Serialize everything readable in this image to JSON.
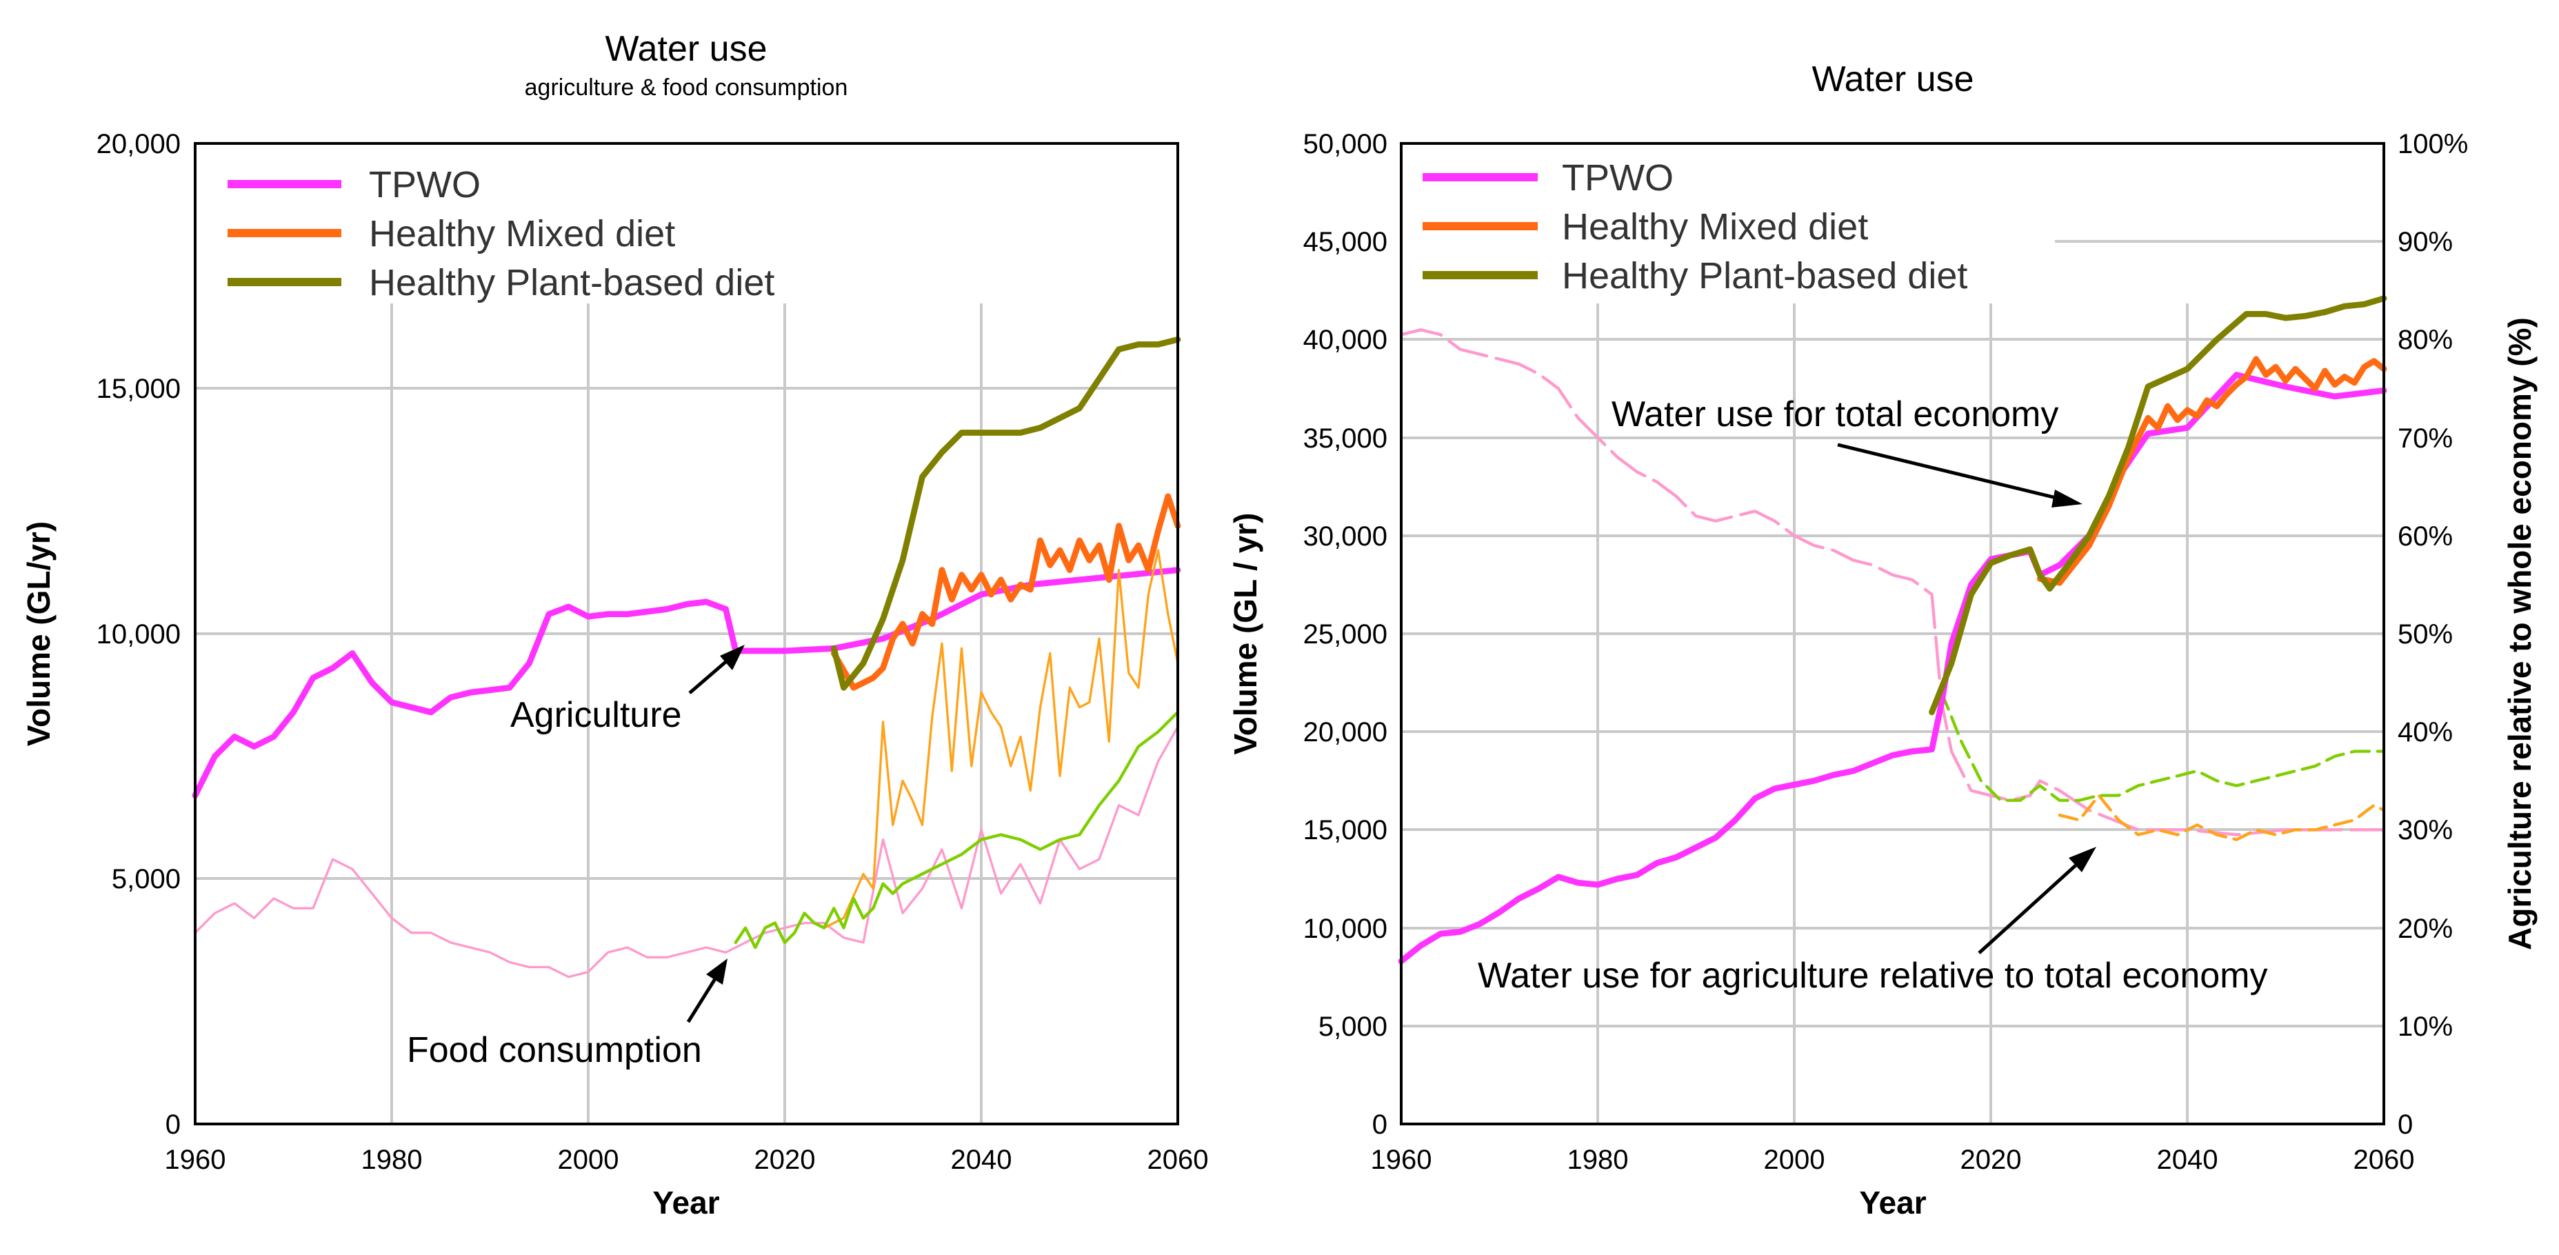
{
  "colors": {
    "tpwo": "#ff33ff",
    "tpwo_light": "#ff99cc",
    "mixed": "#ff6a13",
    "mixed_light": "#ffa31a",
    "plant": "#808000",
    "plant_light": "#7fce00"
  },
  "chart_data": [
    {
      "type": "line",
      "title": "Water use",
      "subtitle": "agriculture & food consumption",
      "xlabel": "Year",
      "ylabel": "Volume (GL/yr)",
      "xlim": [
        1960,
        2060
      ],
      "ylim": [
        0,
        20000
      ],
      "xticks": [
        1960,
        1980,
        2000,
        2020,
        2040,
        2060
      ],
      "xtick_labels": [
        "1960",
        "1980",
        "2000",
        "2020",
        "2040",
        "2060"
      ],
      "yticks": [
        0,
        5000,
        10000,
        15000,
        20000
      ],
      "ytick_labels": [
        "0",
        "5,000",
        "10,000",
        "15,000",
        "20,000"
      ],
      "legend": [
        "TPWO",
        "Healthy Mixed diet",
        "Healthy Plant-based diet"
      ],
      "annotations": [
        {
          "text": "Agriculture",
          "target": [
            2015,
            9650
          ]
        },
        {
          "text": "Food consumption",
          "target": [
            2015,
            3400
          ]
        }
      ],
      "series": [
        {
          "name": "TPWO agriculture",
          "color": "tpwo",
          "width": 8,
          "x": [
            1960,
            1962,
            1964,
            1966,
            1968,
            1970,
            1972,
            1974,
            1976,
            1978,
            1980,
            1982,
            1984,
            1986,
            1988,
            1990,
            1992,
            1994,
            1996,
            1998,
            2000,
            2002,
            2004,
            2006,
            2008,
            2010,
            2012,
            2014,
            2015,
            2020,
            2025,
            2030,
            2035,
            2040,
            2045,
            2050,
            2055,
            2060
          ],
          "y": [
            6700,
            7500,
            7900,
            7700,
            7900,
            8400,
            9100,
            9300,
            9600,
            9000,
            8600,
            8500,
            8400,
            8700,
            8800,
            8850,
            8900,
            9400,
            10400,
            10550,
            10350,
            10400,
            10400,
            10450,
            10500,
            10600,
            10650,
            10500,
            9650,
            9650,
            9700,
            9900,
            10300,
            10800,
            11000,
            11100,
            11200,
            11300
          ]
        },
        {
          "name": "Healthy Mixed diet agriculture",
          "color": "mixed",
          "width": 8,
          "x": [
            2025,
            2027,
            2029,
            2030,
            2031,
            2032,
            2033,
            2034,
            2035,
            2036,
            2037,
            2038,
            2039,
            2040,
            2041,
            2042,
            2043,
            2044,
            2045,
            2046,
            2047,
            2048,
            2049,
            2050,
            2051,
            2052,
            2053,
            2054,
            2055,
            2056,
            2057,
            2058,
            2059,
            2060
          ],
          "y": [
            9600,
            8900,
            9100,
            9300,
            9900,
            10200,
            9800,
            10400,
            10200,
            11300,
            10700,
            11200,
            10900,
            11200,
            10800,
            11100,
            10700,
            11000,
            10900,
            11900,
            11400,
            11700,
            11300,
            11900,
            11500,
            11800,
            11100,
            12200,
            11500,
            11800,
            11300,
            12100,
            12800,
            12200
          ]
        },
        {
          "name": "Healthy Plant-based diet agriculture",
          "color": "plant",
          "width": 8,
          "x": [
            2025,
            2026,
            2028,
            2030,
            2032,
            2034,
            2036,
            2038,
            2040,
            2042,
            2044,
            2046,
            2048,
            2050,
            2052,
            2054,
            2056,
            2058,
            2060
          ],
          "y": [
            9700,
            8900,
            9400,
            10300,
            11500,
            13200,
            13700,
            14100,
            14100,
            14100,
            14100,
            14200,
            14400,
            14600,
            15200,
            15800,
            15900,
            15900,
            16000
          ]
        },
        {
          "name": "TPWO food consumption",
          "color": "tpwo_light",
          "width": 3,
          "x": [
            1960,
            1962,
            1964,
            1966,
            1968,
            1970,
            1972,
            1974,
            1976,
            1978,
            1980,
            1982,
            1984,
            1986,
            1988,
            1990,
            1992,
            1994,
            1996,
            1998,
            2000,
            2002,
            2004,
            2006,
            2008,
            2010,
            2012,
            2014,
            2016,
            2018,
            2020,
            2022,
            2024,
            2026,
            2028,
            2030,
            2032,
            2034,
            2036,
            2038,
            2040,
            2042,
            2044,
            2046,
            2048,
            2050,
            2052,
            2054,
            2056,
            2058,
            2060
          ],
          "y": [
            3900,
            4300,
            4500,
            4200,
            4600,
            4400,
            4400,
            5400,
            5200,
            4700,
            4200,
            3900,
            3900,
            3700,
            3600,
            3500,
            3300,
            3200,
            3200,
            3000,
            3100,
            3500,
            3600,
            3400,
            3400,
            3500,
            3600,
            3500,
            3700,
            3900,
            4000,
            4100,
            4100,
            3800,
            3700,
            5800,
            4300,
            4800,
            5600,
            4400,
            6000,
            4700,
            5300,
            4500,
            5800,
            5200,
            5400,
            6500,
            6300,
            7400,
            8100
          ]
        },
        {
          "name": "Healthy Mixed diet food consumption",
          "color": "mixed_light",
          "width": 3,
          "x": [
            2024,
            2026,
            2028,
            2029,
            2030,
            2031,
            2032,
            2033,
            2034,
            2035,
            2036,
            2037,
            2038,
            2039,
            2040,
            2041,
            2042,
            2043,
            2044,
            2045,
            2046,
            2047,
            2048,
            2049,
            2050,
            2051,
            2052,
            2053,
            2054,
            2055,
            2056,
            2057,
            2058,
            2059,
            2060
          ],
          "y": [
            4000,
            4200,
            5100,
            4800,
            8200,
            6100,
            7000,
            6600,
            6100,
            8300,
            9800,
            7200,
            9700,
            7300,
            8800,
            8400,
            8100,
            7300,
            7900,
            6800,
            8500,
            9600,
            7100,
            8900,
            8500,
            8600,
            9900,
            7800,
            11300,
            9200,
            8900,
            10800,
            11700,
            10400,
            9400
          ]
        },
        {
          "name": "Healthy Plant-based diet food consumption",
          "color": "plant_light",
          "width": 4,
          "x": [
            2015,
            2016,
            2017,
            2018,
            2019,
            2020,
            2021,
            2022,
            2023,
            2024,
            2025,
            2026,
            2027,
            2028,
            2029,
            2030,
            2031,
            2032,
            2034,
            2036,
            2038,
            2040,
            2042,
            2044,
            2046,
            2048,
            2050,
            2052,
            2054,
            2056,
            2058,
            2060
          ],
          "y": [
            3700,
            4000,
            3600,
            4000,
            4100,
            3700,
            3900,
            4300,
            4100,
            4000,
            4400,
            4000,
            4600,
            4200,
            4400,
            4900,
            4700,
            4900,
            5100,
            5300,
            5500,
            5800,
            5900,
            5800,
            5600,
            5800,
            5900,
            6500,
            7000,
            7700,
            8000,
            8400
          ]
        }
      ]
    },
    {
      "type": "line",
      "title": "Water use",
      "xlabel": "Year",
      "ylabel": "Volume (GL / yr)",
      "y2label": "Agriculture relative to whole economy (%)",
      "xlim": [
        1960,
        2060
      ],
      "ylim": [
        0,
        50000
      ],
      "y2lim": [
        0,
        100
      ],
      "xticks": [
        1960,
        1980,
        2000,
        2020,
        2040,
        2060
      ],
      "xtick_labels": [
        "1960",
        "1980",
        "2000",
        "2020",
        "2040",
        "2060"
      ],
      "yticks": [
        0,
        5000,
        10000,
        15000,
        20000,
        25000,
        30000,
        35000,
        40000,
        45000,
        50000
      ],
      "ytick_labels": [
        "0",
        "5,000",
        "10,000",
        "15,000",
        "20,000",
        "25,000",
        "30,000",
        "35,000",
        "40,000",
        "45,000",
        "50,000"
      ],
      "y2ticks": [
        0,
        10,
        20,
        30,
        40,
        50,
        60,
        70,
        80,
        90,
        100
      ],
      "y2tick_labels": [
        "0",
        "10%",
        "20%",
        "30%",
        "40%",
        "50%",
        "60%",
        "70%",
        "80%",
        "90%",
        "100%"
      ],
      "legend": [
        "TPWO",
        "Healthy Mixed diet",
        "Healthy Plant-based diet"
      ],
      "annotations": [
        {
          "text": "Water use for total economy",
          "target": [
            2031,
            31000
          ]
        },
        {
          "text": "Water use for agriculture relative to total economy",
          "target": [
            2031,
            14700
          ]
        }
      ],
      "series": [
        {
          "name": "TPWO total economy",
          "color": "tpwo",
          "width": 8,
          "x": [
            1960,
            1962,
            1964,
            1966,
            1968,
            1970,
            1972,
            1974,
            1976,
            1978,
            1980,
            1982,
            1984,
            1986,
            1988,
            1990,
            1992,
            1994,
            1996,
            1998,
            2000,
            2002,
            2004,
            2006,
            2008,
            2010,
            2012,
            2014,
            2015,
            2016,
            2018,
            2020,
            2022,
            2024,
            2025,
            2027,
            2030,
            2033,
            2036,
            2040,
            2045,
            2050,
            2055,
            2060
          ],
          "y": [
            8300,
            9100,
            9700,
            9800,
            10200,
            10800,
            11500,
            12000,
            12600,
            12300,
            12200,
            12500,
            12700,
            13300,
            13600,
            14100,
            14600,
            15500,
            16600,
            17100,
            17300,
            17500,
            17800,
            18000,
            18400,
            18800,
            19000,
            19100,
            21500,
            24500,
            27500,
            28800,
            29000,
            29200,
            28000,
            28500,
            30000,
            33000,
            35200,
            35500,
            38200,
            37600,
            37100,
            37400
          ]
        },
        {
          "name": "Healthy Mixed diet total economy",
          "color": "mixed",
          "width": 8,
          "x": [
            2025,
            2027,
            2030,
            2032,
            2034,
            2036,
            2037,
            2038,
            2039,
            2040,
            2041,
            2042,
            2043,
            2044,
            2045,
            2046,
            2047,
            2048,
            2049,
            2050,
            2051,
            2052,
            2053,
            2054,
            2055,
            2056,
            2057,
            2058,
            2059,
            2060
          ],
          "y": [
            27800,
            27600,
            29500,
            31500,
            34000,
            36000,
            35500,
            36600,
            35900,
            36400,
            36100,
            36900,
            36600,
            37200,
            37700,
            38100,
            39000,
            38200,
            38600,
            37900,
            38500,
            38000,
            37500,
            38400,
            37700,
            38100,
            37800,
            38600,
            38900,
            38500
          ]
        },
        {
          "name": "Healthy Plant-based diet total economy",
          "color": "plant",
          "width": 8,
          "x": [
            2014,
            2016,
            2018,
            2020,
            2022,
            2024,
            2025,
            2026,
            2028,
            2030,
            2032,
            2034,
            2036,
            2040,
            2043,
            2046,
            2048,
            2050,
            2052,
            2054,
            2056,
            2058,
            2060
          ],
          "y": [
            21000,
            23500,
            27000,
            28600,
            29000,
            29300,
            28000,
            27300,
            28600,
            30000,
            32000,
            34500,
            37600,
            38500,
            40000,
            41300,
            41300,
            41100,
            41200,
            41400,
            41700,
            41800,
            42100
          ]
        },
        {
          "name": "TPWO agriculture share",
          "color": "tpwo_light",
          "width": 4,
          "axis": "y2",
          "dashed": true,
          "x": [
            1960,
            1962,
            1964,
            1966,
            1968,
            1970,
            1972,
            1974,
            1976,
            1978,
            1980,
            1982,
            1984,
            1986,
            1988,
            1990,
            1992,
            1994,
            1996,
            1998,
            2000,
            2002,
            2004,
            2006,
            2008,
            2010,
            2012,
            2014,
            2015,
            2016,
            2018,
            2020,
            2022,
            2024,
            2025,
            2027,
            2030,
            2035,
            2040,
            2045,
            2050,
            2055,
            2060
          ],
          "y": [
            80.5,
            81,
            80.5,
            79,
            78.5,
            78,
            77.5,
            76.5,
            75,
            72,
            70,
            68,
            66.5,
            65.5,
            64,
            62,
            61.5,
            62,
            62.5,
            61.5,
            60,
            59,
            58.5,
            57.5,
            57,
            56,
            55.5,
            54,
            43,
            38,
            34,
            33.5,
            33,
            33.5,
            35,
            34,
            32,
            30,
            30,
            29.5,
            30,
            30,
            30
          ]
        },
        {
          "name": "Healthy Mixed diet agriculture share",
          "color": "mixed_light",
          "width": 4,
          "axis": "y2",
          "dashed": true,
          "x": [
            2027,
            2029,
            2031,
            2033,
            2035,
            2037,
            2039,
            2041,
            2043,
            2045,
            2047,
            2049,
            2051,
            2053,
            2055,
            2057,
            2059,
            2060
          ],
          "y": [
            31.5,
            31,
            33.5,
            31,
            29.5,
            30,
            29.5,
            30.5,
            29.5,
            29,
            30,
            29.5,
            30,
            30,
            30.5,
            31,
            32.5,
            32
          ]
        },
        {
          "name": "Healthy Plant-based diet agriculture share",
          "color": "plant_light",
          "width": 4,
          "axis": "y2",
          "dashed": true,
          "x": [
            2015,
            2017,
            2019,
            2021,
            2023,
            2025,
            2027,
            2029,
            2031,
            2033,
            2035,
            2037,
            2039,
            2041,
            2043,
            2045,
            2047,
            2049,
            2051,
            2053,
            2055,
            2057,
            2060
          ],
          "y": [
            44,
            39,
            35,
            33,
            33,
            34.5,
            33,
            33,
            33.5,
            33.5,
            34.5,
            35,
            35.5,
            36,
            35,
            34.5,
            35,
            35.5,
            36,
            36.5,
            37.5,
            38,
            38
          ]
        }
      ]
    }
  ]
}
